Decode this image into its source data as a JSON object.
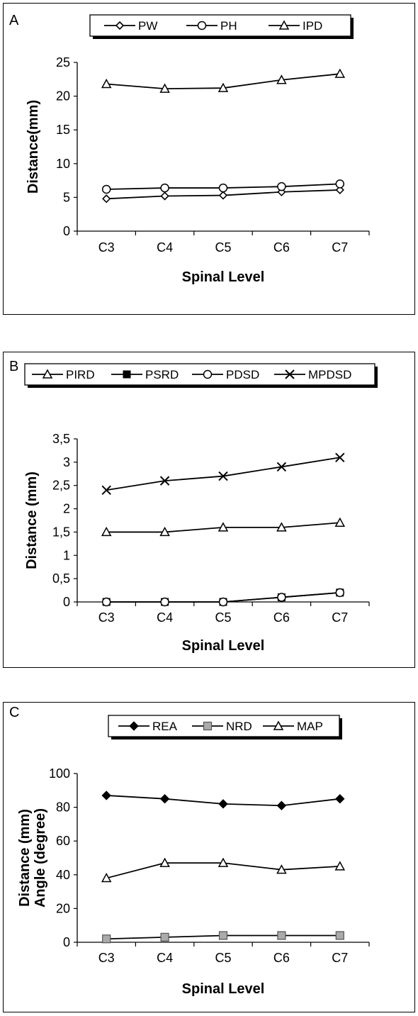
{
  "chart_data": [
    {
      "panel_label": "A",
      "type": "line",
      "categories": [
        "C3",
        "C4",
        "C5",
        "C6",
        "C7"
      ],
      "series": [
        {
          "name": "PW",
          "marker": "diamond",
          "values": [
            4.8,
            5.2,
            5.3,
            5.8,
            6.1
          ]
        },
        {
          "name": "PH",
          "marker": "circle",
          "values": [
            6.2,
            6.4,
            6.4,
            6.6,
            7.0
          ]
        },
        {
          "name": "IPD",
          "marker": "triangle",
          "values": [
            21.8,
            21.1,
            21.2,
            22.4,
            23.3
          ]
        }
      ],
      "xlabel": "Spinal Level",
      "ylabel": "Distance(mm)",
      "ylim": [
        0,
        25
      ],
      "yticks": [
        "0",
        "5",
        "10",
        "15",
        "20",
        "25"
      ],
      "legend_position": "top"
    },
    {
      "panel_label": "B",
      "type": "line",
      "categories": [
        "C3",
        "C4",
        "C5",
        "C6",
        "C7"
      ],
      "series": [
        {
          "name": "PIRD",
          "marker": "triangle",
          "values": [
            1.5,
            1.5,
            1.6,
            1.6,
            1.7
          ]
        },
        {
          "name": "PSRD",
          "marker": "square",
          "values": [
            0,
            0,
            0,
            0.1,
            0.2
          ]
        },
        {
          "name": "PDSD",
          "marker": "circle",
          "values": [
            0,
            0,
            0,
            0.1,
            0.2
          ]
        },
        {
          "name": "MPDSD",
          "marker": "cross",
          "values": [
            2.4,
            2.6,
            2.7,
            2.9,
            3.1
          ]
        }
      ],
      "xlabel": "Spinal Level",
      "ylabel": "Distance (mm)",
      "ylim": [
        0,
        3.5
      ],
      "yticks": [
        "0",
        "0,5",
        "1",
        "1,5",
        "2",
        "2,5",
        "3",
        "3,5"
      ],
      "legend_position": "top"
    },
    {
      "panel_label": "C",
      "type": "line",
      "categories": [
        "C3",
        "C4",
        "C5",
        "C6",
        "C7"
      ],
      "series": [
        {
          "name": "REA",
          "marker": "filled-diamond",
          "values": [
            87,
            85,
            82,
            81,
            85
          ]
        },
        {
          "name": "NRD",
          "marker": "gray-square",
          "values": [
            2,
            3,
            4,
            4,
            4
          ]
        },
        {
          "name": "MAP",
          "marker": "triangle",
          "values": [
            38,
            47,
            47,
            43,
            45
          ]
        }
      ],
      "xlabel": "Spinal Level",
      "ylabel": [
        "Distance (mm)",
        "Angle (degree)"
      ],
      "ylim": [
        0,
        100
      ],
      "yticks": [
        "0",
        "20",
        "40",
        "60",
        "80",
        "100"
      ],
      "legend_position": "top"
    }
  ]
}
